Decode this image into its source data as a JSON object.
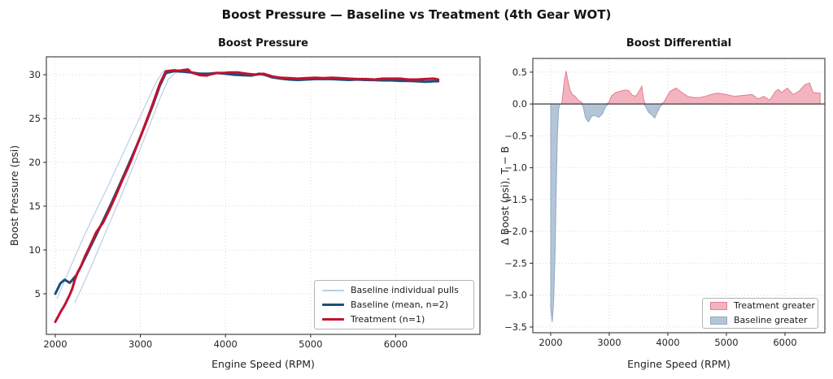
{
  "figure": {
    "suptitle": "Boost Pressure — Baseline vs Treatment (4th Gear WOT)"
  },
  "colors": {
    "baseline_mean": "#1e4e78",
    "treatment": "#c11230",
    "baseline_individual": "#b9cfe4",
    "treatment_fill": "#f3b3bf",
    "treatment_fill_edge": "#e2808f",
    "baseline_fill": "#b5c5d8",
    "baseline_fill_edge": "#8fa9c3",
    "grid": "#d9d9d9",
    "spine": "#474747",
    "zero_line": "#5b5b5b",
    "text": "#262626"
  },
  "chart_data": [
    {
      "id": "boost-pressure",
      "type": "line",
      "title": "Boost Pressure",
      "xlabel": "Engine Speed (RPM)",
      "ylabel": "Boost Pressure (psi)",
      "xlim": [
        1895,
        6990
      ],
      "ylim": [
        0.37,
        32.04
      ],
      "grid": true,
      "legend_position": "lower right",
      "xticks": [
        2000,
        3000,
        4000,
        5000,
        6000
      ],
      "xtick_labels": [
        "2000",
        "3000",
        "4000",
        "5000",
        "6000"
      ],
      "yticks": [
        5,
        10,
        15,
        20,
        25,
        30
      ],
      "ytick_labels": [
        "5",
        "10",
        "15",
        "20",
        "25",
        "30"
      ],
      "series": [
        {
          "name": "baseline-pull-1",
          "legend_label": "Baseline individual pulls",
          "color": "#b9cfe4",
          "width": 1.2,
          "points": [
            [
              2020,
              4.5
            ],
            [
              2120,
              6.7
            ],
            [
              2220,
              9.0
            ],
            [
              2320,
              11.2
            ],
            [
              2420,
              13.3
            ],
            [
              2520,
              15.3
            ],
            [
              2620,
              17.3
            ],
            [
              2720,
              19.4
            ],
            [
              2820,
              21.5
            ],
            [
              2920,
              23.6
            ],
            [
              3020,
              25.7
            ],
            [
              3120,
              27.8
            ],
            [
              3200,
              29.4
            ],
            [
              3270,
              30.4
            ],
            [
              3350,
              30.5
            ],
            [
              3500,
              30.45
            ],
            [
              3650,
              30.2
            ],
            [
              3800,
              30.2
            ],
            [
              3950,
              30.25
            ],
            [
              4100,
              30.1
            ],
            [
              4250,
              30.0
            ],
            [
              4400,
              30.2
            ],
            [
              4550,
              29.8
            ],
            [
              4700,
              29.6
            ],
            [
              4850,
              29.5
            ],
            [
              5000,
              29.6
            ],
            [
              5200,
              29.6
            ],
            [
              5400,
              29.5
            ],
            [
              5600,
              29.55
            ],
            [
              5800,
              29.45
            ],
            [
              6000,
              29.45
            ],
            [
              6200,
              29.35
            ],
            [
              6400,
              29.35
            ],
            [
              6500,
              29.35
            ]
          ]
        },
        {
          "name": "baseline-pull-2",
          "legend_label": null,
          "color": "#b9cfe4",
          "width": 1.2,
          "points": [
            [
              2230,
              4.0
            ],
            [
              2330,
              6.1
            ],
            [
              2430,
              8.3
            ],
            [
              2530,
              10.6
            ],
            [
              2630,
              12.9
            ],
            [
              2730,
              15.2
            ],
            [
              2830,
              17.5
            ],
            [
              2930,
              19.9
            ],
            [
              3030,
              22.3
            ],
            [
              3130,
              24.8
            ],
            [
              3230,
              27.3
            ],
            [
              3330,
              29.5
            ],
            [
              3420,
              30.3
            ],
            [
              3500,
              30.25
            ],
            [
              3650,
              30.1
            ],
            [
              3800,
              30.0
            ],
            [
              3950,
              30.1
            ],
            [
              4100,
              29.9
            ],
            [
              4250,
              29.85
            ],
            [
              4400,
              30.0
            ],
            [
              4550,
              29.6
            ],
            [
              4700,
              29.45
            ],
            [
              4850,
              29.3
            ],
            [
              5000,
              29.4
            ],
            [
              5200,
              29.4
            ],
            [
              5400,
              29.35
            ],
            [
              5600,
              29.35
            ],
            [
              5800,
              29.25
            ],
            [
              6000,
              29.25
            ],
            [
              6200,
              29.15
            ],
            [
              6400,
              29.15
            ],
            [
              6500,
              29.2
            ]
          ]
        },
        {
          "name": "baseline-mean",
          "legend_label": "Baseline (mean, n=2)",
          "color": "#1e4e78",
          "width": 3,
          "points": [
            [
              2000,
              5.0
            ],
            [
              2060,
              6.2
            ],
            [
              2110,
              6.6
            ],
            [
              2170,
              6.25
            ],
            [
              2250,
              7.15
            ],
            [
              2350,
              9.1
            ],
            [
              2450,
              11.1
            ],
            [
              2550,
              13.1
            ],
            [
              2650,
              15.15
            ],
            [
              2750,
              17.3
            ],
            [
              2850,
              19.5
            ],
            [
              2950,
              21.75
            ],
            [
              3050,
              24.1
            ],
            [
              3150,
              26.6
            ],
            [
              3230,
              28.8
            ],
            [
              3300,
              30.2
            ],
            [
              3400,
              30.4
            ],
            [
              3500,
              30.35
            ],
            [
              3600,
              30.25
            ],
            [
              3700,
              30.1
            ],
            [
              3800,
              30.1
            ],
            [
              3900,
              30.2
            ],
            [
              4000,
              30.1
            ],
            [
              4100,
              30.0
            ],
            [
              4200,
              29.95
            ],
            [
              4300,
              29.9
            ],
            [
              4400,
              30.1
            ],
            [
              4460,
              30.0
            ],
            [
              4550,
              29.7
            ],
            [
              4650,
              29.55
            ],
            [
              4750,
              29.45
            ],
            [
              4850,
              29.4
            ],
            [
              4950,
              29.45
            ],
            [
              5050,
              29.5
            ],
            [
              5150,
              29.5
            ],
            [
              5250,
              29.5
            ],
            [
              5350,
              29.45
            ],
            [
              5450,
              29.4
            ],
            [
              5550,
              29.45
            ],
            [
              5650,
              29.4
            ],
            [
              5750,
              29.4
            ],
            [
              5850,
              29.35
            ],
            [
              5950,
              29.35
            ],
            [
              6050,
              29.3
            ],
            [
              6150,
              29.3
            ],
            [
              6250,
              29.25
            ],
            [
              6350,
              29.2
            ],
            [
              6450,
              29.25
            ],
            [
              6500,
              29.25
            ]
          ]
        },
        {
          "name": "treatment",
          "legend_label": "Treatment (n=1)",
          "color": "#c11230",
          "width": 3,
          "points": [
            [
              2000,
              1.8
            ],
            [
              2060,
              2.9
            ],
            [
              2110,
              3.7
            ],
            [
              2170,
              4.9
            ],
            [
              2200,
              5.6
            ],
            [
              2230,
              6.6
            ],
            [
              2260,
              7.4
            ],
            [
              2300,
              8.1
            ],
            [
              2350,
              9.3
            ],
            [
              2420,
              10.7
            ],
            [
              2480,
              12.0
            ],
            [
              2530,
              12.7
            ],
            [
              2560,
              13.1
            ],
            [
              2600,
              13.9
            ],
            [
              2650,
              14.9
            ],
            [
              2710,
              16.2
            ],
            [
              2780,
              17.8
            ],
            [
              2850,
              19.3
            ],
            [
              2890,
              20.2
            ],
            [
              2950,
              21.7
            ],
            [
              3000,
              22.9
            ],
            [
              3050,
              24.2
            ],
            [
              3120,
              26.0
            ],
            [
              3230,
              29.0
            ],
            [
              3300,
              30.4
            ],
            [
              3400,
              30.5
            ],
            [
              3450,
              30.45
            ],
            [
              3520,
              30.55
            ],
            [
              3560,
              30.6
            ],
            [
              3590,
              30.3
            ],
            [
              3620,
              30.2
            ],
            [
              3700,
              29.95
            ],
            [
              3780,
              29.9
            ],
            [
              3830,
              30.05
            ],
            [
              3900,
              30.2
            ],
            [
              3980,
              30.2
            ],
            [
              4050,
              30.25
            ],
            [
              4150,
              30.25
            ],
            [
              4250,
              30.1
            ],
            [
              4350,
              30.0
            ],
            [
              4450,
              30.1
            ],
            [
              4550,
              29.8
            ],
            [
              4650,
              29.65
            ],
            [
              4750,
              29.6
            ],
            [
              4850,
              29.55
            ],
            [
              4950,
              29.6
            ],
            [
              5050,
              29.65
            ],
            [
              5150,
              29.6
            ],
            [
              5250,
              29.65
            ],
            [
              5350,
              29.6
            ],
            [
              5450,
              29.55
            ],
            [
              5550,
              29.5
            ],
            [
              5650,
              29.5
            ],
            [
              5750,
              29.45
            ],
            [
              5850,
              29.55
            ],
            [
              5950,
              29.55
            ],
            [
              6050,
              29.55
            ],
            [
              6150,
              29.45
            ],
            [
              6250,
              29.45
            ],
            [
              6350,
              29.5
            ],
            [
              6450,
              29.55
            ],
            [
              6500,
              29.45
            ]
          ]
        }
      ]
    },
    {
      "id": "boost-differential",
      "type": "area",
      "title": "Boost Differential",
      "xlabel": "Engine Speed (RPM)",
      "ylabel": "Δ Boost (psi), T − B",
      "xlim": [
        1695,
        6681
      ],
      "ylim": [
        -3.59,
        0.715
      ],
      "grid": true,
      "zero_line": true,
      "legend_position": "lower right",
      "xticks": [
        2000,
        3000,
        4000,
        5000,
        6000
      ],
      "xtick_labels": [
        "2000",
        "3000",
        "4000",
        "5000",
        "6000"
      ],
      "yticks": [
        0.5,
        0.0,
        -0.5,
        -1.0,
        -1.5,
        -2.0,
        -2.5,
        -3.0,
        -3.5
      ],
      "ytick_labels": [
        "0.5",
        "0.0",
        "−0.5",
        "−1.0",
        "−1.5",
        "−2.0",
        "−2.5",
        "−3.0",
        "−3.5"
      ],
      "points": [
        [
          2000,
          -3.2
        ],
        [
          2025,
          -3.42
        ],
        [
          2050,
          -3.1
        ],
        [
          2075,
          -2.3
        ],
        [
          2095,
          -1.3
        ],
        [
          2115,
          -0.5
        ],
        [
          2135,
          -0.08
        ],
        [
          2160,
          0.0
        ],
        [
          2190,
          0.0
        ],
        [
          2210,
          0.18
        ],
        [
          2240,
          0.4
        ],
        [
          2265,
          0.52
        ],
        [
          2295,
          0.36
        ],
        [
          2330,
          0.22
        ],
        [
          2370,
          0.15
        ],
        [
          2420,
          0.12
        ],
        [
          2470,
          0.06
        ],
        [
          2520,
          0.03
        ],
        [
          2555,
          -0.04
        ],
        [
          2595,
          -0.22
        ],
        [
          2645,
          -0.28
        ],
        [
          2700,
          -0.19
        ],
        [
          2760,
          -0.18
        ],
        [
          2820,
          -0.21
        ],
        [
          2880,
          -0.16
        ],
        [
          2940,
          -0.04
        ],
        [
          2990,
          0.02
        ],
        [
          3040,
          0.13
        ],
        [
          3110,
          0.18
        ],
        [
          3190,
          0.2
        ],
        [
          3270,
          0.22
        ],
        [
          3330,
          0.21
        ],
        [
          3390,
          0.14
        ],
        [
          3450,
          0.12
        ],
        [
          3510,
          0.2
        ],
        [
          3555,
          0.28
        ],
        [
          3585,
          0.08
        ],
        [
          3615,
          -0.03
        ],
        [
          3670,
          -0.13
        ],
        [
          3725,
          -0.17
        ],
        [
          3775,
          -0.22
        ],
        [
          3825,
          -0.12
        ],
        [
          3875,
          -0.03
        ],
        [
          3925,
          0.02
        ],
        [
          3975,
          0.1
        ],
        [
          4040,
          0.2
        ],
        [
          4140,
          0.25
        ],
        [
          4240,
          0.18
        ],
        [
          4340,
          0.12
        ],
        [
          4440,
          0.1
        ],
        [
          4540,
          0.1
        ],
        [
          4640,
          0.12
        ],
        [
          4740,
          0.15
        ],
        [
          4840,
          0.17
        ],
        [
          4940,
          0.16
        ],
        [
          5040,
          0.14
        ],
        [
          5140,
          0.12
        ],
        [
          5240,
          0.13
        ],
        [
          5340,
          0.14
        ],
        [
          5440,
          0.15
        ],
        [
          5540,
          0.08
        ],
        [
          5640,
          0.12
        ],
        [
          5740,
          0.06
        ],
        [
          5840,
          0.2
        ],
        [
          5890,
          0.23
        ],
        [
          5940,
          0.18
        ],
        [
          6040,
          0.25
        ],
        [
          6140,
          0.15
        ],
        [
          6240,
          0.2
        ],
        [
          6340,
          0.3
        ],
        [
          6420,
          0.33
        ],
        [
          6480,
          0.18
        ],
        [
          6560,
          0.17
        ],
        [
          6600,
          0.17
        ]
      ],
      "fills": [
        {
          "name": "treatment-greater",
          "label": "Treatment greater",
          "mode": "positive",
          "fill": "#f3b3bf",
          "edge": "#e2808f"
        },
        {
          "name": "baseline-greater",
          "label": "Baseline greater",
          "mode": "negative",
          "fill": "#b5c5d8",
          "edge": "#8fa9c3"
        }
      ]
    }
  ]
}
